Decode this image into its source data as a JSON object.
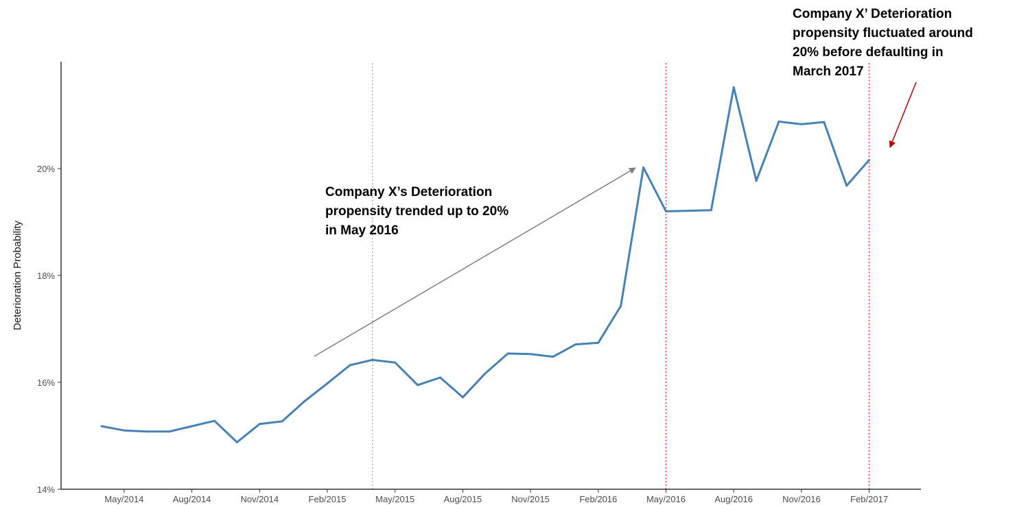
{
  "chart_data": {
    "type": "line",
    "title": "",
    "xlabel": "",
    "ylabel": "Deterioration Probability",
    "ylim": [
      14,
      22
    ],
    "yticks": [
      "14%",
      "16%",
      "18%",
      "20%"
    ],
    "xticks": [
      "May/2014",
      "Aug/2014",
      "Nov/2014",
      "Feb/2015",
      "May/2015",
      "Aug/2015",
      "Nov/2015",
      "Feb/2016",
      "May/2016",
      "Aug/2016",
      "Nov/2016",
      "Feb/2017"
    ],
    "grid": false,
    "line_color": "#4682b4",
    "series": [
      {
        "x": [
          "2014-04",
          "2014-05",
          "2014-06",
          "2014-07",
          "2014-08",
          "2014-09",
          "2014-10",
          "2014-11",
          "2014-12",
          "2015-01",
          "2015-02",
          "2015-03",
          "2015-04",
          "2015-05",
          "2015-06",
          "2015-07",
          "2015-08",
          "2015-09",
          "2015-10",
          "2015-11",
          "2015-12",
          "2016-01",
          "2016-02",
          "2016-03",
          "2016-04",
          "2016-05",
          "2016-06",
          "2016-07",
          "2016-08",
          "2016-09",
          "2016-10",
          "2016-11",
          "2016-12",
          "2017-01",
          "2017-02"
        ],
        "values": [
          15.18,
          15.1,
          15.08,
          15.08,
          15.18,
          15.28,
          14.88,
          15.22,
          15.27,
          15.65,
          15.98,
          16.32,
          16.42,
          16.37,
          15.95,
          16.09,
          15.72,
          16.17,
          16.54,
          16.53,
          16.48,
          16.71,
          16.74,
          17.43,
          20.02,
          19.2,
          19.21,
          19.22,
          21.52,
          19.77,
          20.88,
          20.83,
          20.87,
          19.68,
          20.16
        ]
      }
    ],
    "reference_lines": [
      {
        "x": "2015-04",
        "color": "#b0b0b0"
      },
      {
        "x": "2016-05",
        "color": "#ff4040"
      },
      {
        "x": "2017-02",
        "color": "#ff4040"
      }
    ],
    "annotations": [
      {
        "text": "Company X’s Deterioration\npropensity trended up to 20%\nin May 2016",
        "arrow_color": "#808080"
      },
      {
        "text": "Company X’ Deterioration\npropensity fluctuated around\n20% before defaulting in\nMarch 2017",
        "arrow_color": "#b00000"
      }
    ]
  }
}
